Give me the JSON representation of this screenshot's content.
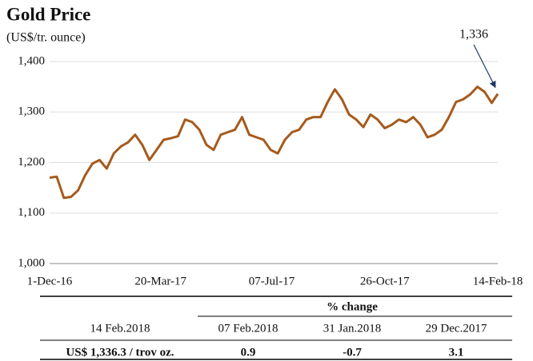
{
  "chart_data": {
    "type": "line",
    "title": "Gold Price",
    "subtitle": "(US$/tr. ounce)",
    "x": [
      "2016-12-01",
      "2016-12-08",
      "2016-12-15",
      "2016-12-22",
      "2016-12-29",
      "2017-01-05",
      "2017-01-12",
      "2017-01-19",
      "2017-01-26",
      "2017-02-02",
      "2017-02-09",
      "2017-02-16",
      "2017-02-23",
      "2017-03-02",
      "2017-03-09",
      "2017-03-16",
      "2017-03-23",
      "2017-03-30",
      "2017-04-06",
      "2017-04-13",
      "2017-04-20",
      "2017-04-27",
      "2017-05-04",
      "2017-05-11",
      "2017-05-18",
      "2017-05-25",
      "2017-06-01",
      "2017-06-08",
      "2017-06-15",
      "2017-06-22",
      "2017-06-29",
      "2017-07-06",
      "2017-07-13",
      "2017-07-20",
      "2017-07-27",
      "2017-08-03",
      "2017-08-10",
      "2017-08-17",
      "2017-08-24",
      "2017-08-31",
      "2017-09-07",
      "2017-09-14",
      "2017-09-21",
      "2017-09-28",
      "2017-10-05",
      "2017-10-12",
      "2017-10-19",
      "2017-10-26",
      "2017-11-02",
      "2017-11-09",
      "2017-11-16",
      "2017-11-23",
      "2017-11-30",
      "2017-12-07",
      "2017-12-14",
      "2017-12-21",
      "2017-12-28",
      "2018-01-04",
      "2018-01-11",
      "2018-01-18",
      "2018-01-25",
      "2018-02-01",
      "2018-02-08",
      "2018-02-14"
    ],
    "values": [
      1170,
      1172,
      1130,
      1132,
      1145,
      1175,
      1198,
      1205,
      1188,
      1218,
      1232,
      1240,
      1255,
      1235,
      1205,
      1225,
      1245,
      1248,
      1252,
      1285,
      1280,
      1265,
      1235,
      1225,
      1255,
      1260,
      1265,
      1290,
      1255,
      1250,
      1245,
      1225,
      1218,
      1245,
      1260,
      1265,
      1285,
      1290,
      1290,
      1320,
      1345,
      1325,
      1295,
      1285,
      1270,
      1295,
      1285,
      1268,
      1275,
      1285,
      1280,
      1290,
      1275,
      1250,
      1255,
      1265,
      1290,
      1320,
      1325,
      1335,
      1350,
      1340,
      1318,
      1336
    ],
    "color": "#a65a1c",
    "xlim": [
      "2016-12-01",
      "2018-02-14"
    ],
    "xticks": [
      {
        "value": "2016-12-01",
        "label": "1-Dec-16"
      },
      {
        "value": "2017-03-20",
        "label": "20-Mar-17"
      },
      {
        "value": "2017-07-07",
        "label": "07-Jul-17"
      },
      {
        "value": "2017-10-26",
        "label": "26-Oct-17"
      },
      {
        "value": "2018-02-14",
        "label": "14-Feb-18"
      }
    ],
    "ylim": [
      1000,
      1400
    ],
    "yticks": [
      {
        "value": 1000,
        "label": "1,000"
      },
      {
        "value": 1100,
        "label": "1,100"
      },
      {
        "value": 1200,
        "label": "1,200"
      },
      {
        "value": 1300,
        "label": "1,300"
      },
      {
        "value": 1400,
        "label": "1,400"
      }
    ],
    "grid": true,
    "annotation": "1,336"
  },
  "table": {
    "group_header": "% change",
    "header": [
      "14 Feb.2018",
      "07 Feb.2018",
      "31 Jan.2018",
      "29 Dec.2017"
    ],
    "row": [
      "US$ 1,336.3 / trov oz.",
      0.9,
      -0.7,
      3.1
    ]
  }
}
